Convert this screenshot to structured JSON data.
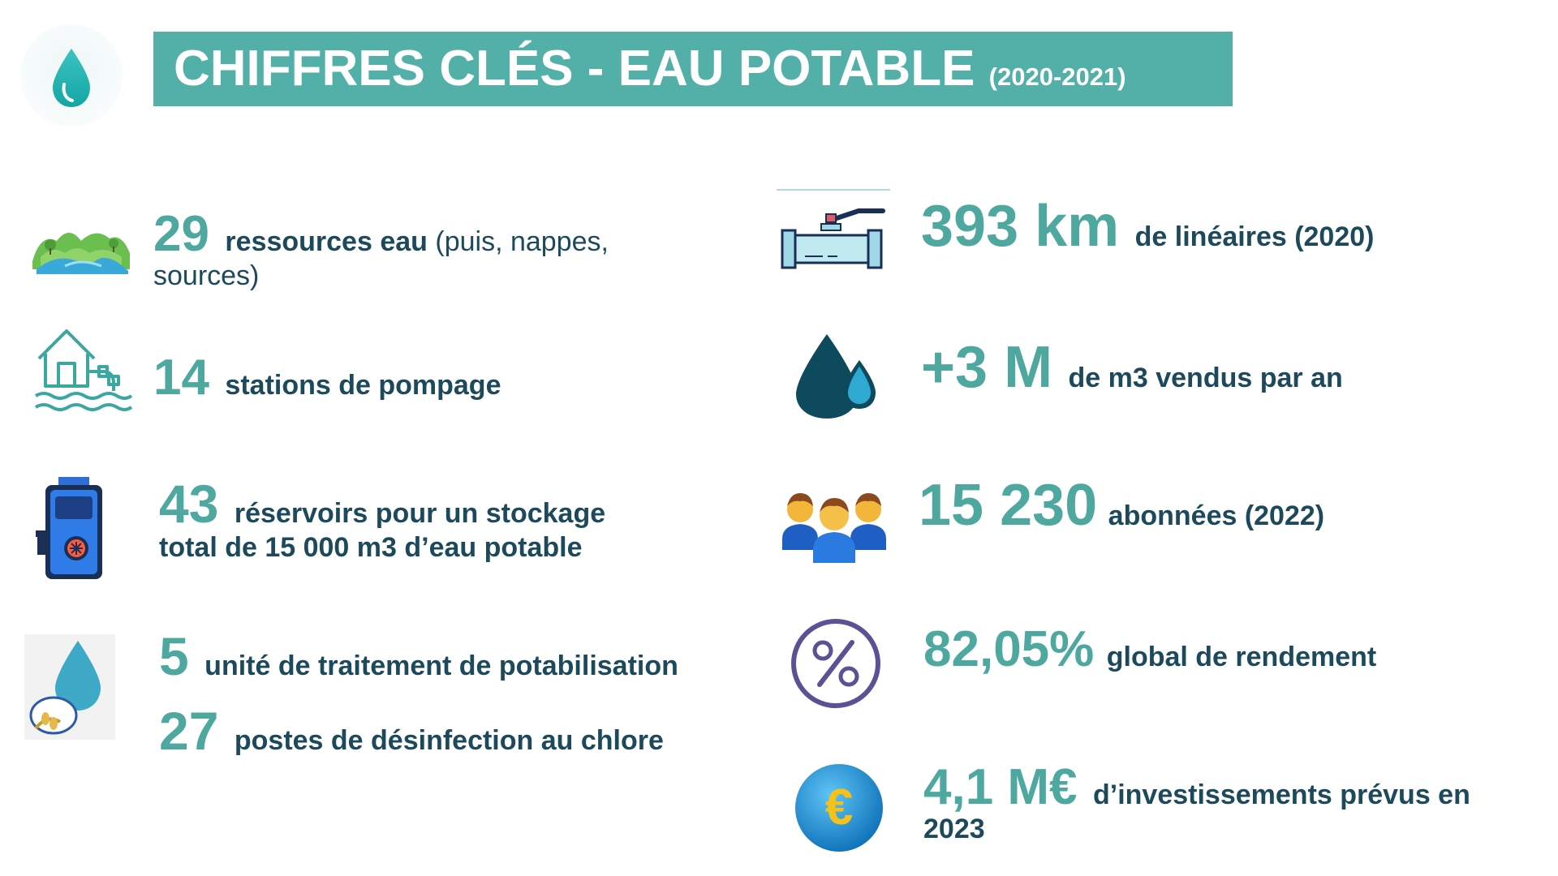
{
  "header": {
    "title": "CHIFFRES CLÉS - EAU POTABLE",
    "period": "(2020-2021)"
  },
  "colors": {
    "accent": "#52b0a8",
    "number": "#4ea89f",
    "text": "#1c4a5c"
  },
  "left_stats": [
    {
      "icon": "landscape-icon",
      "number": "29",
      "label_bold": "ressources eau",
      "label_regular": " (puis, nappes, sources)"
    },
    {
      "icon": "pumping-station-icon",
      "number": "14",
      "label_bold": "stations de pompage"
    },
    {
      "icon": "water-heater-icon",
      "number": "43",
      "label_bold": "réservoirs pour un stockage total de 15 000 m3 d’eau potable"
    },
    {
      "icon": "water-treatment-icon",
      "number": "5",
      "label_bold": "unité de traitement de potabilisation"
    },
    {
      "number": "27",
      "label_bold": "postes de désinfection au chlore"
    }
  ],
  "right_stats": [
    {
      "icon": "pipe-valve-icon",
      "number": "393 km",
      "label_bold": "de linéaires (2020)"
    },
    {
      "icon": "water-drops-icon",
      "number": "+3 M",
      "label_bold": "de m3 vendus par an"
    },
    {
      "icon": "users-group-icon",
      "number": "15 230",
      "label_bold": "abonnées (2022)"
    },
    {
      "icon": "percent-icon",
      "number": "82,05%",
      "label_bold": "global de rendement"
    },
    {
      "icon": "euro-coin-icon",
      "number": "4,1 M€",
      "label_bold": "d’investissements prévus en 2023"
    }
  ]
}
